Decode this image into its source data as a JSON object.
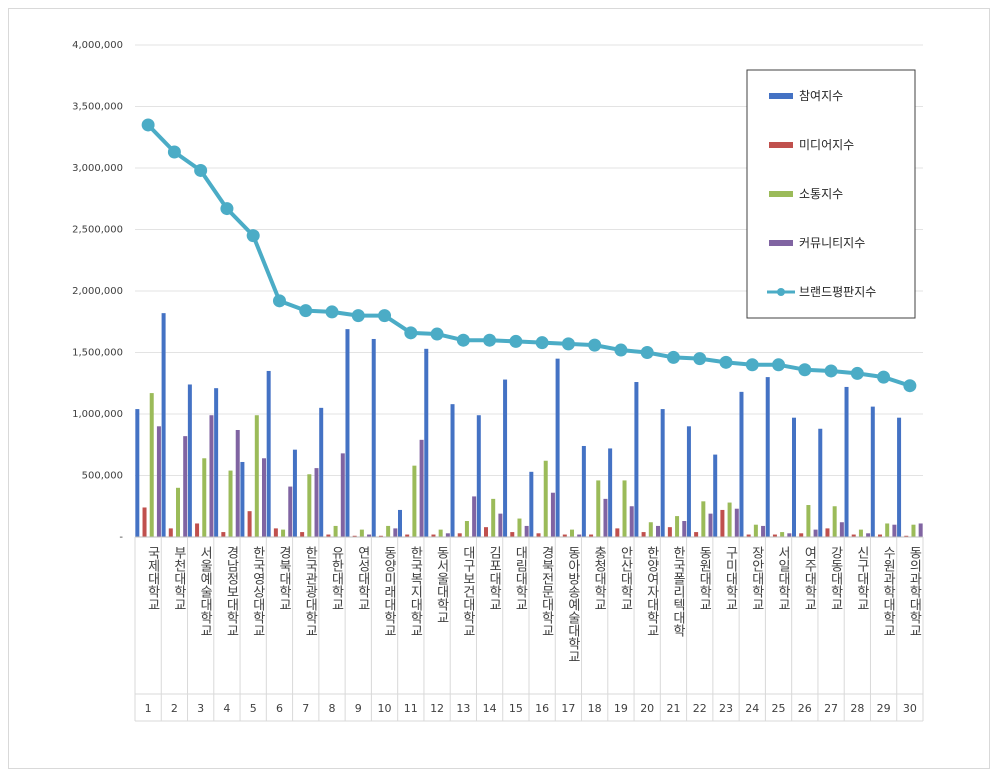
{
  "chart_data": {
    "type": "bar",
    "title": "",
    "xlabel": "",
    "ylabel": "",
    "ylim": [
      0,
      4000000
    ],
    "yticks": [
      0,
      500000,
      1000000,
      1500000,
      2000000,
      2500000,
      3000000,
      3500000,
      4000000
    ],
    "ytick_labels": [
      "-",
      "500,000",
      "1,000,000",
      "1,500,000",
      "2,000,000",
      "2,500,000",
      "3,000,000",
      "3,500,000",
      "4,000,000"
    ],
    "grid": true,
    "legend_position": "top-right",
    "ranks": [
      "1",
      "2",
      "3",
      "4",
      "5",
      "6",
      "7",
      "8",
      "9",
      "10",
      "11",
      "12",
      "13",
      "14",
      "15",
      "16",
      "17",
      "18",
      "19",
      "20",
      "21",
      "22",
      "23",
      "24",
      "25",
      "26",
      "27",
      "28",
      "29",
      "30"
    ],
    "categories": [
      "국제대학교",
      "부천대학교",
      "서울예술대학교",
      "경남정보대학교",
      "한국영상대학교",
      "경북대학교",
      "한국관광대학교",
      "유한대학교",
      "연성대학교",
      "동양미래대학교",
      "한국복지대학교",
      "동서울대학교",
      "대구보건대학교",
      "김포대학교",
      "대림대학교",
      "경북전문대학교",
      "동아방송예술대학교",
      "충청대학교",
      "안산대학교",
      "한양여자대학교",
      "한국폴리텍대학",
      "동원대학교",
      "구미대학교",
      "장안대학교",
      "서일대학교",
      "여주대학교",
      "강동대학교",
      "신구대학교",
      "수원과학대학교",
      "동의과학대학교"
    ],
    "series": [
      {
        "name": "참여지수",
        "kind": "bar",
        "color": "#4472c4",
        "values": [
          1040000,
          1820000,
          1240000,
          1210000,
          610000,
          1350000,
          710000,
          1050000,
          1690000,
          1610000,
          220000,
          1530000,
          1080000,
          990000,
          1280000,
          530000,
          1450000,
          740000,
          720000,
          1260000,
          1040000,
          900000,
          670000,
          1180000,
          1300000,
          970000,
          880000,
          1220000,
          1060000,
          970000
        ]
      },
      {
        "name": "미디어지수",
        "kind": "bar",
        "color": "#c0504d",
        "values": [
          240000,
          70000,
          110000,
          40000,
          210000,
          70000,
          40000,
          20000,
          10000,
          10000,
          20000,
          20000,
          30000,
          80000,
          40000,
          30000,
          20000,
          20000,
          70000,
          40000,
          80000,
          40000,
          220000,
          20000,
          20000,
          30000,
          70000,
          20000,
          20000,
          10000
        ]
      },
      {
        "name": "소통지수",
        "kind": "bar",
        "color": "#9bbb59",
        "values": [
          1170000,
          400000,
          640000,
          540000,
          990000,
          60000,
          510000,
          90000,
          60000,
          90000,
          580000,
          60000,
          130000,
          310000,
          150000,
          620000,
          60000,
          460000,
          460000,
          120000,
          170000,
          290000,
          280000,
          100000,
          40000,
          260000,
          250000,
          60000,
          110000,
          100000
        ]
      },
      {
        "name": "커뮤니티지수",
        "kind": "bar",
        "color": "#8064a2",
        "values": [
          900000,
          820000,
          990000,
          870000,
          640000,
          410000,
          560000,
          680000,
          20000,
          70000,
          790000,
          30000,
          330000,
          190000,
          90000,
          360000,
          20000,
          310000,
          250000,
          90000,
          130000,
          190000,
          230000,
          90000,
          30000,
          60000,
          120000,
          30000,
          100000,
          110000
        ]
      },
      {
        "name": "브랜드평판지수",
        "kind": "line",
        "color": "#4bacc6",
        "values": [
          3350000,
          3130000,
          2980000,
          2670000,
          2450000,
          1920000,
          1840000,
          1830000,
          1800000,
          1800000,
          1660000,
          1650000,
          1600000,
          1600000,
          1590000,
          1580000,
          1570000,
          1560000,
          1520000,
          1500000,
          1460000,
          1450000,
          1420000,
          1400000,
          1400000,
          1360000,
          1350000,
          1330000,
          1300000,
          1230000
        ]
      }
    ]
  }
}
